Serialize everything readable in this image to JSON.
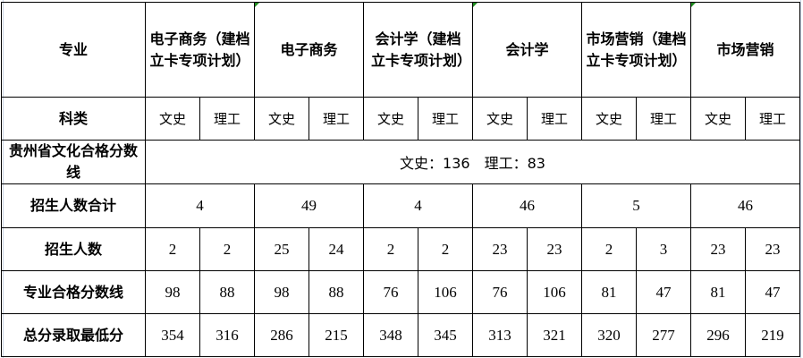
{
  "header": {
    "major_label": "专业",
    "majors": [
      "电子商务（建档立卡专项计划）",
      "电子商务",
      "会计学（建档立卡专项计划）",
      "会计学",
      "市场营销（建档立卡专项计划）",
      "市场营销"
    ]
  },
  "subject_row": {
    "label": "科类",
    "arts": "文史",
    "science": "理工"
  },
  "culture_line": {
    "label": "贵州省文化合格分数线",
    "value": "文史：136　理工：83"
  },
  "total_enroll": {
    "label": "招生人数合计",
    "values": [
      "4",
      "49",
      "4",
      "46",
      "5",
      "46"
    ]
  },
  "rows": [
    {
      "label": "招生人数",
      "values": [
        "2",
        "2",
        "25",
        "24",
        "2",
        "2",
        "23",
        "23",
        "2",
        "3",
        "23",
        "23"
      ]
    },
    {
      "label": "专业合格分数线",
      "values": [
        "98",
        "88",
        "98",
        "88",
        "76",
        "106",
        "76",
        "106",
        "81",
        "47",
        "81",
        "47"
      ]
    },
    {
      "label": "总分录取最低分",
      "values": [
        "354",
        "316",
        "286",
        "215",
        "348",
        "345",
        "313",
        "321",
        "320",
        "277",
        "296",
        "219"
      ]
    }
  ]
}
